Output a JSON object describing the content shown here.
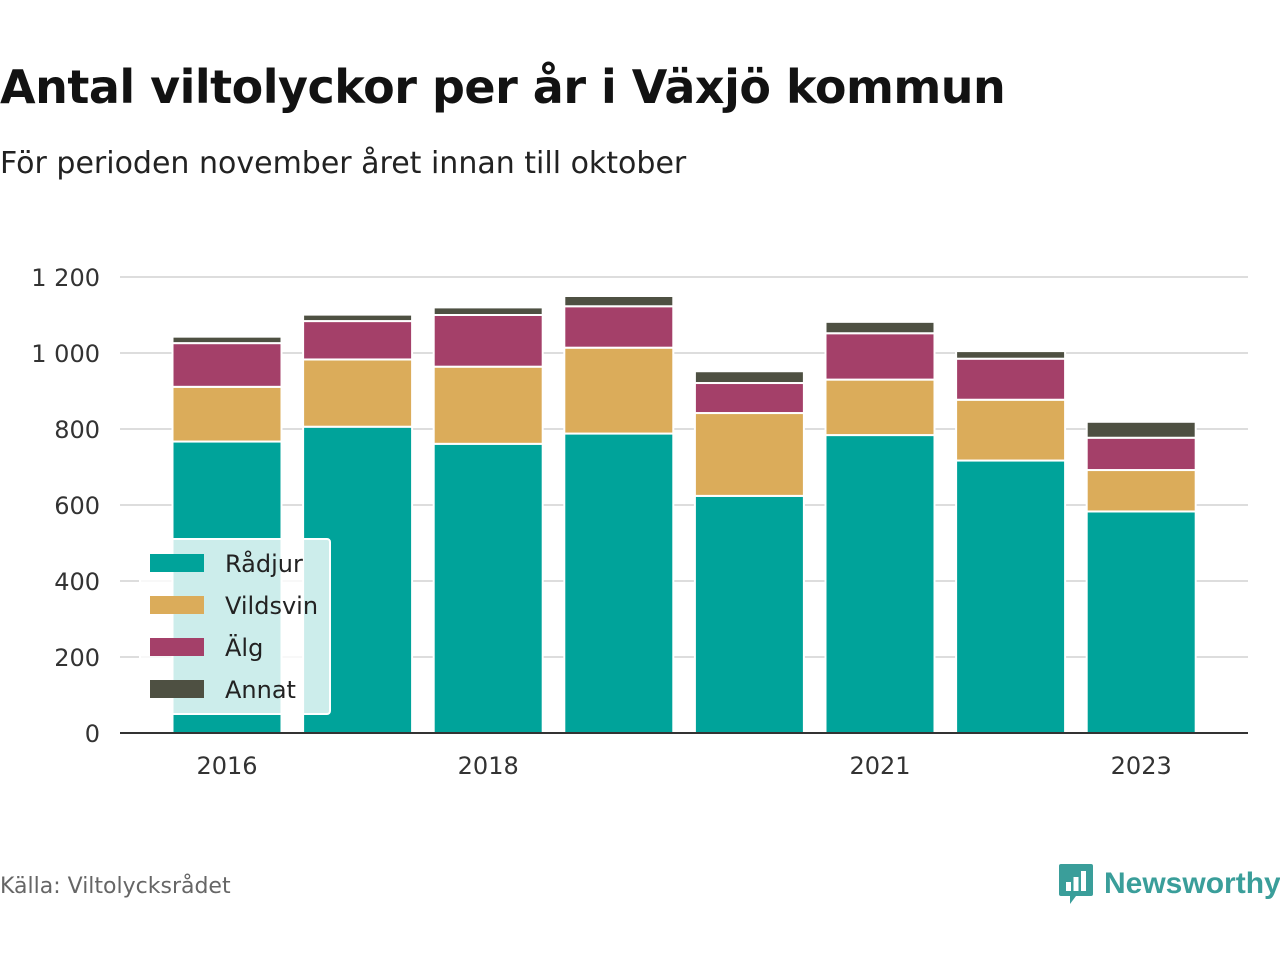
{
  "title": "Antal viltolyckor per år i Växjö kommun",
  "subtitle": "För perioden november året innan till oktober",
  "source": "Källa: Viltolycksrådet",
  "brand": {
    "name": "Newsworthy",
    "icon": "newsworthy-logo-icon"
  },
  "colors": {
    "Rådjur": "#00a39a",
    "Vildsvin": "#dbac5a",
    "Älg": "#a44069",
    "Annat": "#4e5042",
    "grid": "#dddddd",
    "axis": "#333333"
  },
  "chart_data": {
    "type": "bar",
    "stacked": true,
    "x": [
      2016,
      2017,
      2018,
      2019,
      2020,
      2021,
      2022,
      2023
    ],
    "x_tick_labels": [
      "2016",
      "2018",
      "2021",
      "2023"
    ],
    "x_tick_values": [
      2016,
      2018,
      2021,
      2023
    ],
    "y_ticks": [
      0,
      200,
      400,
      600,
      800,
      1000,
      1200
    ],
    "y_tick_labels": [
      "0",
      "200",
      "400",
      "600",
      "800",
      "1 000",
      "1 200"
    ],
    "ylim": [
      0,
      1200
    ],
    "grid": true,
    "legend_position": "bottom-left",
    "series": [
      {
        "name": "Rådjur",
        "values": [
          767,
          806,
          761,
          788,
          624,
          784,
          717,
          583
        ]
      },
      {
        "name": "Vildsvin",
        "values": [
          144,
          177,
          203,
          226,
          218,
          146,
          160,
          109
        ]
      },
      {
        "name": "Älg",
        "values": [
          115,
          101,
          136,
          109,
          79,
          122,
          108,
          85
        ]
      },
      {
        "name": "Annat",
        "values": [
          17,
          17,
          20,
          27,
          31,
          30,
          20,
          42
        ]
      }
    ],
    "xlabel": "",
    "ylabel": ""
  }
}
